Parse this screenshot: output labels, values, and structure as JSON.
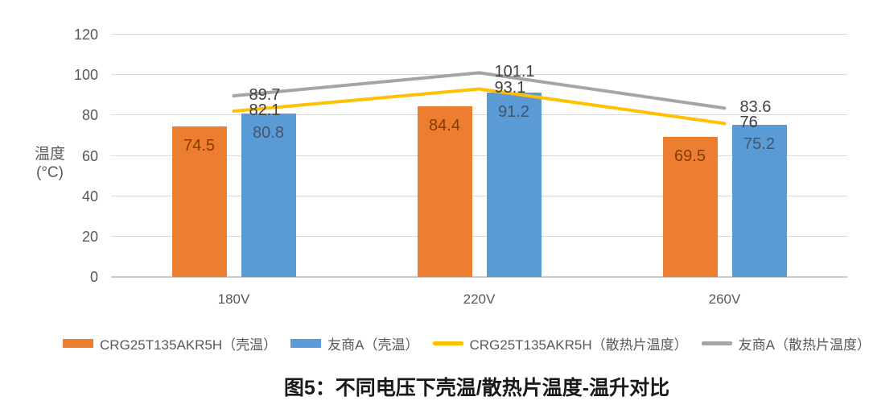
{
  "chart_data": {
    "type": "bar",
    "subtype": "combo-bar-line",
    "title": "图5：不同电压下壳温/散热片温度-温升对比",
    "categories": [
      "180V",
      "220V",
      "260V"
    ],
    "series": [
      {
        "name": "CRG25T135AKR5H（壳温）",
        "type": "bar",
        "values": [
          74.5,
          84.4,
          69.5
        ],
        "color": "#ED7D31",
        "label_color": "#843C00"
      },
      {
        "name": "友商A（壳温）",
        "type": "bar",
        "values": [
          80.8,
          91.2,
          75.2
        ],
        "color": "#5B9BD5",
        "label_color": "#44546A"
      },
      {
        "name": "CRG25T135AKR5H（散热片温度）",
        "type": "line",
        "values": [
          82.1,
          93.1,
          76
        ],
        "color": "#FFC000",
        "label_color": "#404040"
      },
      {
        "name": "友商A（散热片温度）",
        "type": "line",
        "values": [
          89.7,
          101.1,
          83.6
        ],
        "color": "#A5A5A5",
        "label_color": "#404040"
      }
    ],
    "y_axis": {
      "title_lines": [
        "温度",
        "(°C)"
      ],
      "min": 0,
      "max": 120,
      "tick_step": 20,
      "ticks": [
        0,
        20,
        40,
        60,
        80,
        100,
        120
      ]
    },
    "x_axis": {
      "label": ""
    },
    "grid": true,
    "legend_position": "bottom",
    "colors": {
      "gridline": "#d9d9d9",
      "axis_line": "#c9c9c9",
      "axis_text": "#595959",
      "line_label_text": "#404040"
    }
  }
}
